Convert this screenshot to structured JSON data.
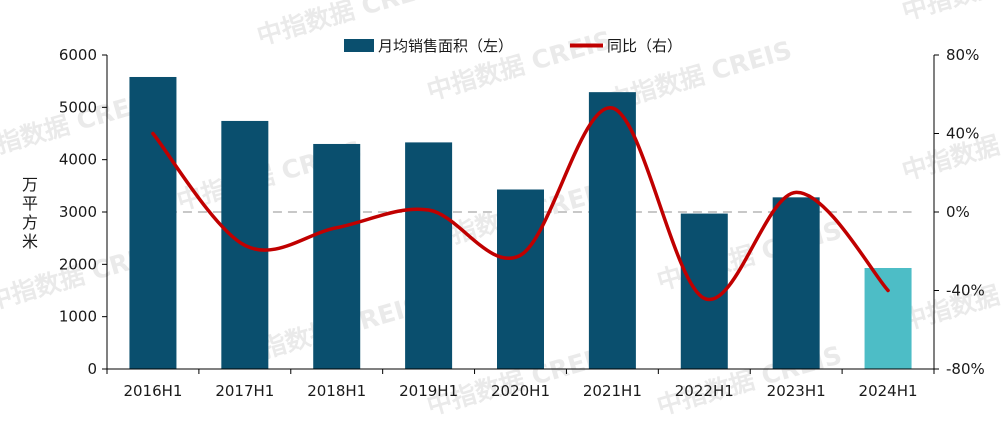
{
  "chart_data": {
    "type": "bar",
    "categories": [
      "2016H1",
      "2017H1",
      "2018H1",
      "2019H1",
      "2020H1",
      "2021H1",
      "2022H1",
      "2023H1",
      "2024H1"
    ],
    "series": [
      {
        "name": "月均销售面积（左）",
        "type": "bar",
        "axis": "left",
        "values": [
          5580,
          4740,
          4300,
          4330,
          3430,
          5290,
          2970,
          3280,
          1930
        ],
        "color": "#0a4f6e",
        "highlight_color": "#4dbdc6",
        "highlight_index": 8
      },
      {
        "name": "同比（右）",
        "type": "line",
        "axis": "right",
        "values": [
          40,
          -17,
          -8,
          1,
          -22,
          53,
          -44,
          10,
          -40
        ],
        "color": "#c00000"
      }
    ],
    "ylabel": "万平方米",
    "ylim": [
      0,
      6000
    ],
    "yticks": [
      "0",
      "1000",
      "2000",
      "3000",
      "4000",
      "5000",
      "6000"
    ],
    "y2lim": [
      -80,
      80
    ],
    "y2ticks": [
      "-80%",
      "-40%",
      "0%",
      "40%",
      "80%"
    ],
    "zero_reference_line": "dashed",
    "legend_position": "top-center",
    "grid": false
  },
  "watermark": "中指数据 CREIS"
}
